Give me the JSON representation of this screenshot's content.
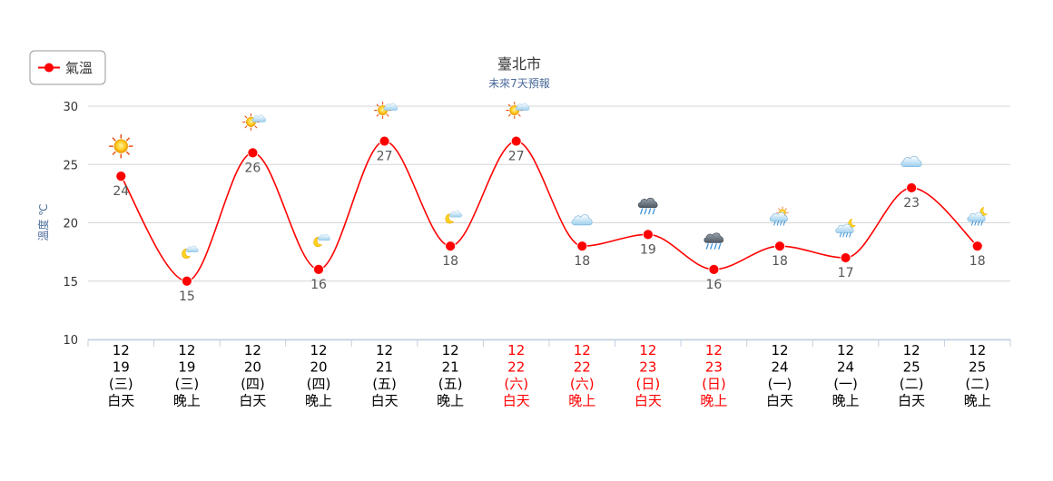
{
  "chart_data": {
    "type": "line",
    "title": "臺北市",
    "subtitle": "未來7天預報",
    "ylabel": "溫度 ℃",
    "ylim": [
      10,
      30
    ],
    "yticks": [
      10,
      15,
      20,
      25,
      30
    ],
    "grid": true,
    "legend": {
      "position": "top-left"
    },
    "series": [
      {
        "name": "氣溫",
        "color": "#ff0000",
        "values": [
          24,
          15,
          26,
          16,
          27,
          18,
          27,
          18,
          19,
          16,
          18,
          17,
          23,
          18
        ]
      }
    ],
    "categories": [
      {
        "month": "12",
        "day": "19",
        "weekday": "(三)",
        "period": "白天",
        "weekend": false,
        "icon": "sunny-icon"
      },
      {
        "month": "12",
        "day": "19",
        "weekday": "(三)",
        "period": "晚上",
        "weekend": false,
        "icon": "moon-cloud-icon"
      },
      {
        "month": "12",
        "day": "20",
        "weekday": "(四)",
        "period": "白天",
        "weekend": false,
        "icon": "sun-cloud-icon"
      },
      {
        "month": "12",
        "day": "20",
        "weekday": "(四)",
        "period": "晚上",
        "weekend": false,
        "icon": "moon-cloud-icon"
      },
      {
        "month": "12",
        "day": "21",
        "weekday": "(五)",
        "period": "白天",
        "weekend": false,
        "icon": "sun-cloud-icon"
      },
      {
        "month": "12",
        "day": "21",
        "weekday": "(五)",
        "period": "晚上",
        "weekend": false,
        "icon": "moon-cloud-icon"
      },
      {
        "month": "12",
        "day": "22",
        "weekday": "(六)",
        "period": "白天",
        "weekend": true,
        "icon": "sun-cloud-icon"
      },
      {
        "month": "12",
        "day": "22",
        "weekday": "(六)",
        "period": "晚上",
        "weekend": true,
        "icon": "cloudy-icon"
      },
      {
        "month": "12",
        "day": "23",
        "weekday": "(日)",
        "period": "白天",
        "weekend": true,
        "icon": "storm-rain-icon"
      },
      {
        "month": "12",
        "day": "23",
        "weekday": "(日)",
        "period": "晚上",
        "weekend": true,
        "icon": "storm-rain-icon"
      },
      {
        "month": "12",
        "day": "24",
        "weekday": "(一)",
        "period": "白天",
        "weekend": false,
        "icon": "sun-cloud-rain-icon"
      },
      {
        "month": "12",
        "day": "24",
        "weekday": "(一)",
        "period": "晚上",
        "weekend": false,
        "icon": "moon-cloud-rain-icon"
      },
      {
        "month": "12",
        "day": "25",
        "weekday": "(二)",
        "period": "白天",
        "weekend": false,
        "icon": "cloudy-icon"
      },
      {
        "month": "12",
        "day": "25",
        "weekday": "(二)",
        "period": "晚上",
        "weekend": false,
        "icon": "moon-cloud-rain-icon"
      }
    ],
    "colors": {
      "weekday_text": "#000000",
      "weekend_text": "#ff0000",
      "grid": "#d6d6d6",
      "axis": "#c0d0e0"
    }
  }
}
